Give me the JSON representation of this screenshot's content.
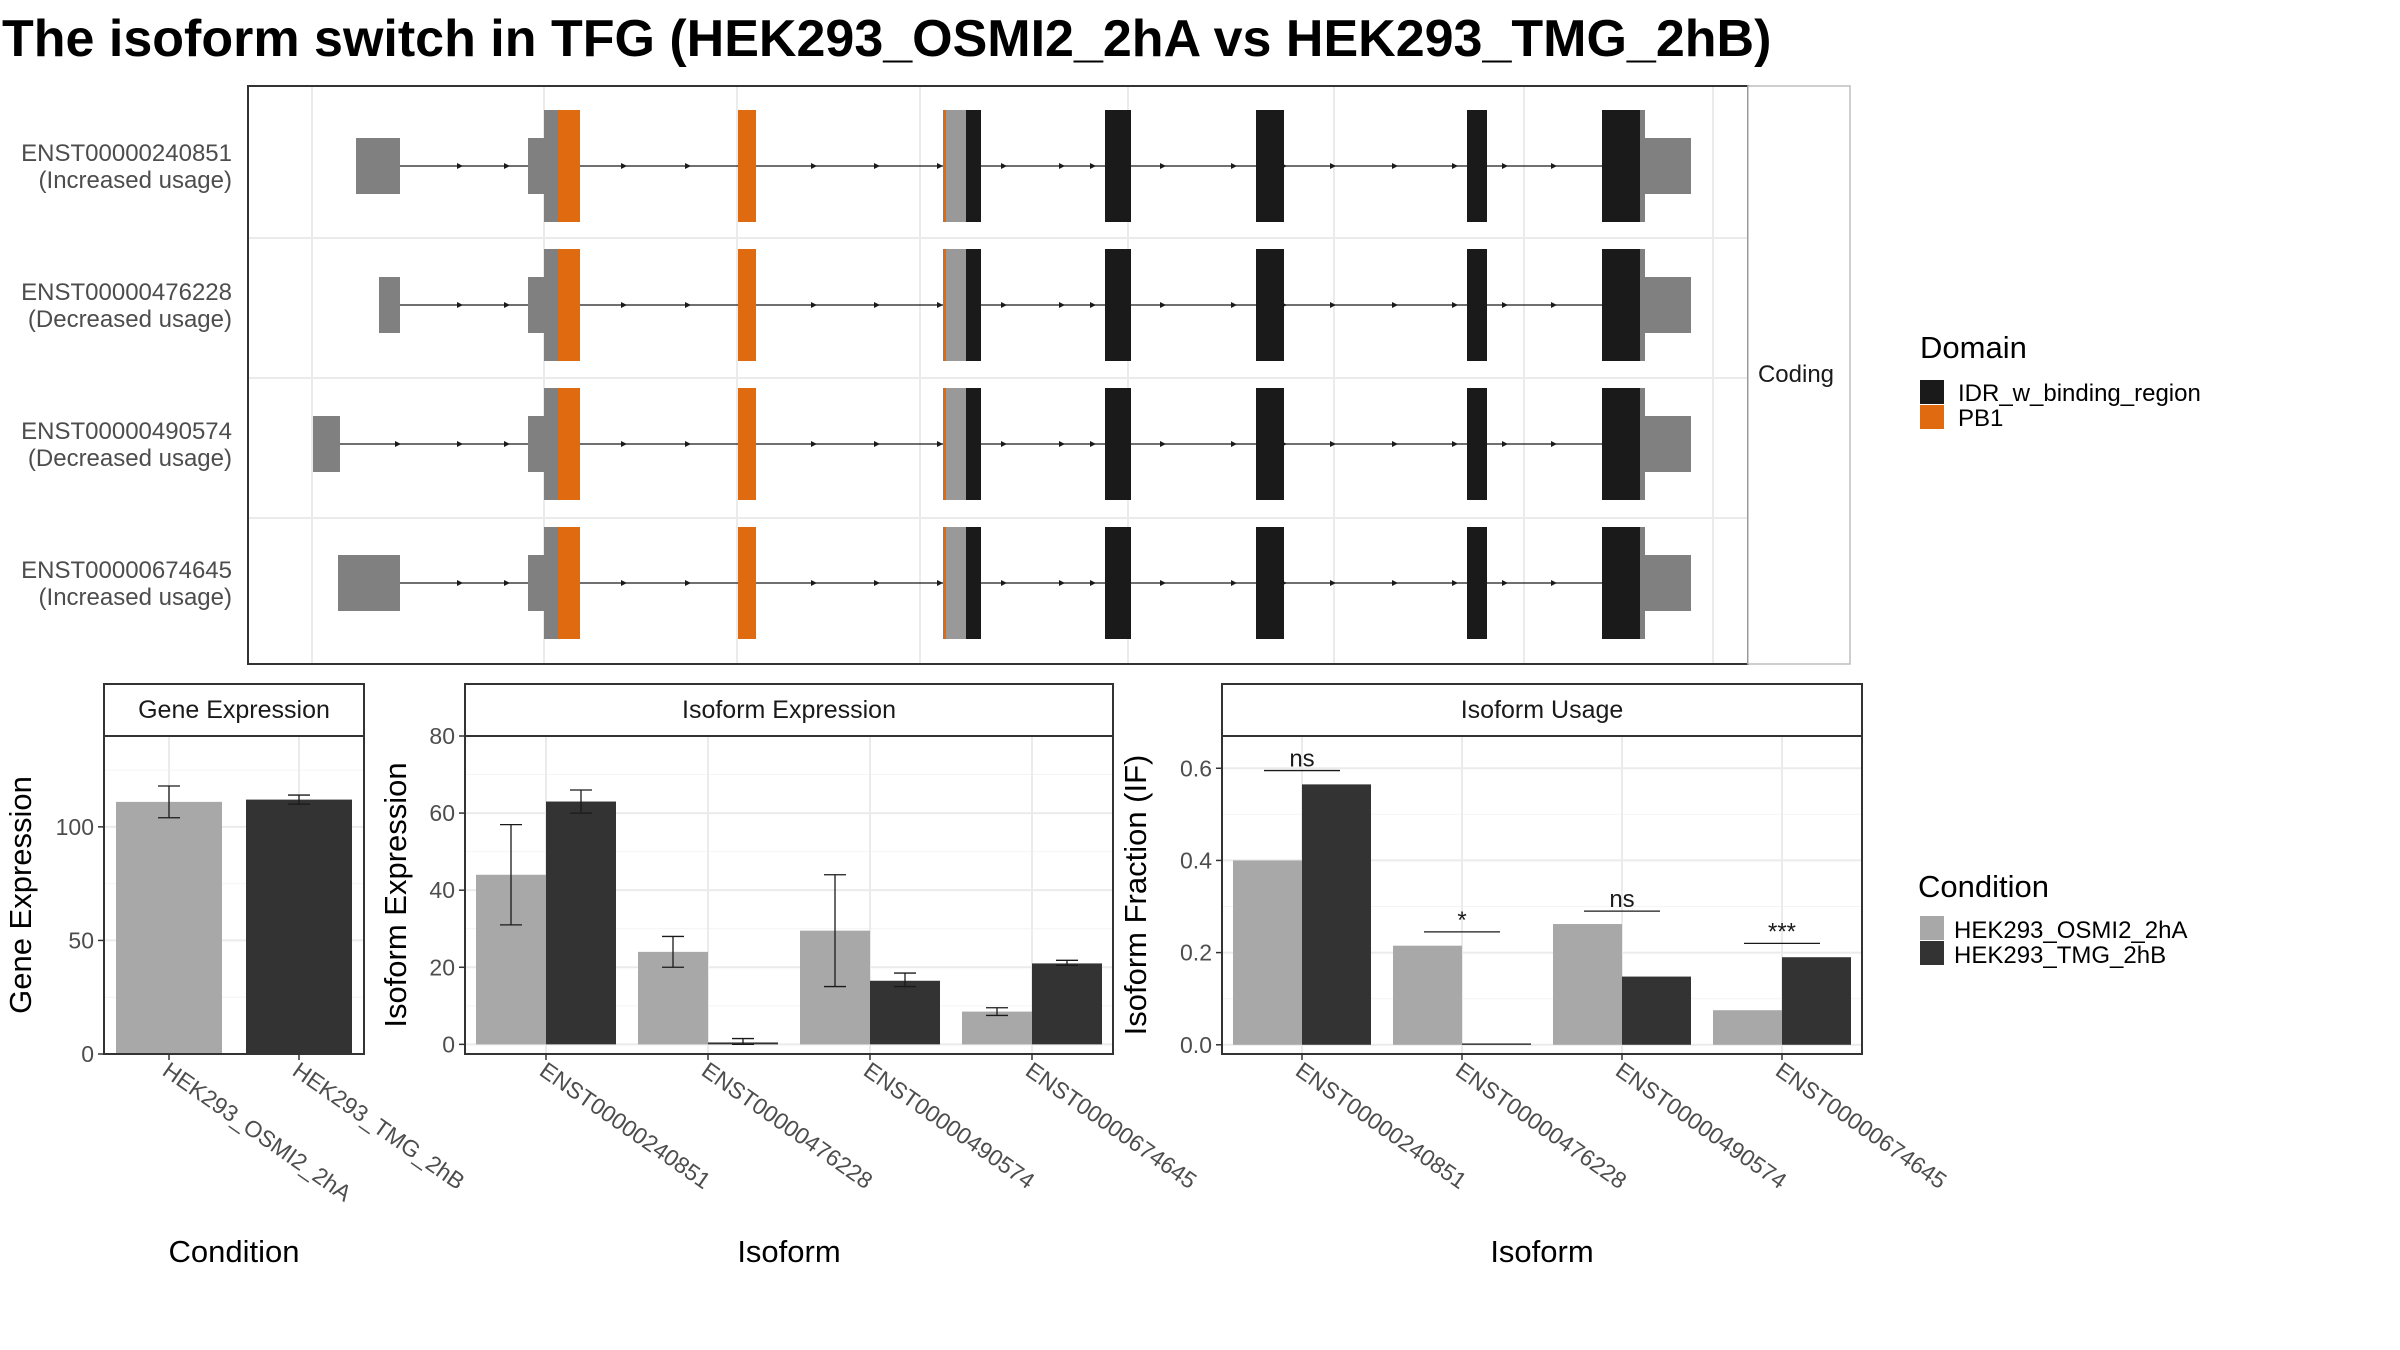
{
  "title": "The isoform switch in TFG (HEK293_OSMI2_2hA vs HEK293_TMG_2hB)",
  "colors": {
    "idr": "#1a1a1a",
    "pb1": "#e06a10",
    "utr": "#808080",
    "condition_a": "#a8a8a8",
    "condition_b": "#333333",
    "panel_border": "#333333",
    "strip_fill": "#ffffff",
    "grid": "#ebebeb"
  },
  "structure": {
    "facet_label": "Coding",
    "transcripts": [
      {
        "id": "ENST00000240851",
        "usage": "(Increased usage)"
      },
      {
        "id": "ENST00000476228",
        "usage": "(Decreased usage)"
      },
      {
        "id": "ENST00000490574",
        "usage": "(Decreased usage)"
      },
      {
        "id": "ENST00000674645",
        "usage": "(Increased usage)"
      }
    ]
  },
  "legends": {
    "domain": {
      "title": "Domain",
      "items": [
        "IDR_w_binding_region",
        "PB1"
      ]
    },
    "condition": {
      "title": "Condition",
      "items": [
        "HEK293_OSMI2_2hA",
        "HEK293_TMG_2hB"
      ]
    }
  },
  "chart_data": [
    {
      "type": "bar",
      "title": "Gene Expression",
      "xlabel": "Condition",
      "ylabel": "Gene Expression",
      "categories": [
        "HEK293_OSMI2_2hA",
        "HEK293_TMG_2hB"
      ],
      "values": [
        111,
        112
      ],
      "error_low": [
        104,
        110
      ],
      "error_high": [
        118,
        114
      ],
      "ylim": [
        0,
        140
      ],
      "yticks": [
        0,
        50,
        100
      ],
      "grid": true
    },
    {
      "type": "bar",
      "title": "Isoform Expression",
      "xlabel": "Isoform",
      "ylabel": "Isoform Expression",
      "categories": [
        "ENST00000240851",
        "ENST00000476228",
        "ENST00000490574",
        "ENST00000674645"
      ],
      "series": [
        {
          "name": "HEK293_OSMI2_2hA",
          "values": [
            44,
            24,
            29.5,
            8.5
          ],
          "error_low": [
            31,
            20,
            15,
            7.5
          ],
          "error_high": [
            57,
            28,
            44,
            9.5
          ]
        },
        {
          "name": "HEK293_TMG_2hB",
          "values": [
            63,
            0.5,
            16.5,
            21
          ],
          "error_low": [
            60,
            0,
            15,
            20.5
          ],
          "error_high": [
            66,
            1.5,
            18.5,
            21.8
          ]
        }
      ],
      "ylim": [
        -2.5,
        80
      ],
      "yticks": [
        0,
        20,
        40,
        60,
        80
      ],
      "grid": true
    },
    {
      "type": "bar",
      "title": "Isoform Usage",
      "xlabel": "Isoform",
      "ylabel": "Isoform Fraction (IF)",
      "categories": [
        "ENST00000240851",
        "ENST00000476228",
        "ENST00000490574",
        "ENST00000674645"
      ],
      "series": [
        {
          "name": "HEK293_OSMI2_2hA",
          "values": [
            0.4,
            0.215,
            0.262,
            0.075
          ]
        },
        {
          "name": "HEK293_TMG_2hB",
          "values": [
            0.565,
            0.003,
            0.148,
            0.19
          ]
        }
      ],
      "significance": [
        "ns",
        "*",
        "ns",
        "***"
      ],
      "significance_y": [
        0.595,
        0.245,
        0.29,
        0.22
      ],
      "ylim": [
        -0.02,
        0.67
      ],
      "yticks": [
        0.0,
        0.2,
        0.4,
        0.6
      ],
      "ytick_labels": [
        "0.0",
        "0.2",
        "0.4",
        "0.6"
      ],
      "grid": true
    }
  ]
}
